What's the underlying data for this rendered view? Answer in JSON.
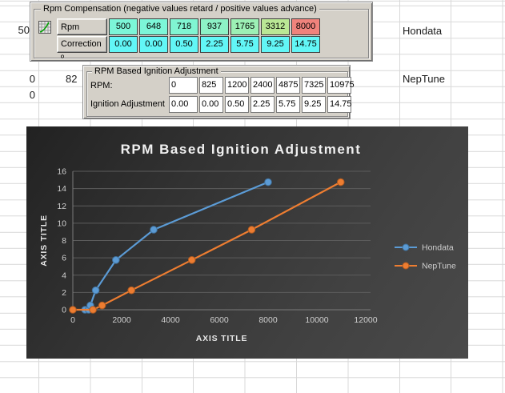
{
  "spreadsheet": {
    "top_left_value": "50",
    "mid_left_value_1": "0",
    "mid_left_value_2": "82",
    "lower_left_value": "0",
    "series_label_1": "Hondata",
    "series_label_2": "NepTune"
  },
  "rpm_panel": {
    "title": "Rpm Compensation (negative values retard / positive values advance)",
    "rpm_button_label": "Rpm",
    "correction_button_label": "Correction º",
    "rpm_cells": [
      {
        "value": "500",
        "bg": "#7cf6d8"
      },
      {
        "value": "648",
        "bg": "#7cf6d8"
      },
      {
        "value": "718",
        "bg": "#80f5d2"
      },
      {
        "value": "937",
        "bg": "#8df2c6"
      },
      {
        "value": "1765",
        "bg": "#9cf0b5"
      },
      {
        "value": "3312",
        "bg": "#bae795"
      },
      {
        "value": "8000",
        "bg": "#f0837c"
      }
    ],
    "correction_cells": {
      "values": [
        "0.00",
        "0.00",
        "0.50",
        "2.25",
        "5.75",
        "9.25",
        "14.75"
      ],
      "bg": "#62f6f6"
    },
    "panel_bg": "#d4d0c8"
  },
  "adjustment_panel": {
    "title": "RPM Based Ignition Adjustment",
    "rpm_label": "RPM:",
    "ignition_label": "Ignition Adjustment",
    "rpm_values": [
      "0",
      "825",
      "1200",
      "2400",
      "4875",
      "7325",
      "10975"
    ],
    "ignition_values": [
      "0.00",
      "0.00",
      "0.50",
      "2.25",
      "5.75",
      "9.25",
      "14.75"
    ]
  },
  "chart_data": {
    "type": "line",
    "title": "RPM Based Ignition Adjustment",
    "xlabel": "AXIS TITLE",
    "ylabel": "AXIS TITLE",
    "xlim": [
      0,
      12000
    ],
    "ylim": [
      0,
      16
    ],
    "x_ticks": [
      0,
      2000,
      4000,
      6000,
      8000,
      10000,
      12000
    ],
    "y_ticks": [
      0,
      2,
      4,
      6,
      8,
      10,
      12,
      14,
      16
    ],
    "grid": true,
    "legend_position": "right",
    "background": "dark-gradient",
    "series": [
      {
        "name": "Hondata",
        "color": "#5b9bd5",
        "edge": "#41719c",
        "x": [
          500,
          648,
          718,
          937,
          1765,
          3312,
          8000
        ],
        "y": [
          0.0,
          0.0,
          0.5,
          2.25,
          5.75,
          9.25,
          14.75
        ]
      },
      {
        "name": "NepTune",
        "color": "#ed7d31",
        "edge": "#ae5a21",
        "x": [
          0,
          825,
          1200,
          2400,
          4875,
          7325,
          10975
        ],
        "y": [
          0.0,
          0.0,
          0.5,
          2.25,
          5.75,
          9.25,
          14.75
        ]
      }
    ],
    "colors": {
      "gridline": "#5c5c5c",
      "axis_line": "#7a7a7a",
      "tick_text": "#cfcfcf",
      "title_text": "#f0f0f0"
    }
  }
}
